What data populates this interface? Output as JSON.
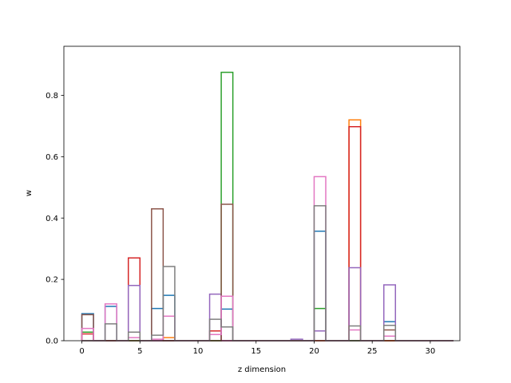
{
  "chart_data": {
    "type": "bar",
    "style": "step-outline histogram",
    "xlabel": "z dimension",
    "ylabel": "w",
    "xlim": [
      -1.55,
      32.55
    ],
    "ylim": [
      0,
      0.96
    ],
    "xticks": [
      0,
      5,
      10,
      15,
      20,
      25,
      30
    ],
    "yticks": [
      0.0,
      0.2,
      0.4,
      0.6,
      0.8
    ],
    "ytick_labels": [
      "0.0",
      "0.2",
      "0.4",
      "0.6",
      "0.8"
    ],
    "bins": [
      0,
      1,
      2,
      3,
      4,
      5,
      6,
      7,
      8,
      9,
      10,
      11,
      12,
      13,
      14,
      15,
      16,
      17,
      18,
      19,
      20,
      21,
      22,
      23,
      24,
      25,
      26,
      27,
      28,
      29,
      30,
      31
    ],
    "bar_width": 1,
    "grid": false,
    "legend": "none",
    "series": [
      {
        "color": "#1f77b4",
        "values": [
          0.088,
          0,
          0.112,
          0,
          0,
          0,
          0.105,
          0.148,
          0,
          0,
          0,
          0,
          0.103,
          0,
          0,
          0,
          0,
          0,
          0,
          0,
          0.357,
          0,
          0,
          0,
          0,
          0,
          0.062,
          0,
          0,
          0,
          0,
          0
        ]
      },
      {
        "color": "#ff7f0e",
        "values": [
          0,
          0,
          0,
          0,
          0,
          0,
          0,
          0.01,
          0,
          0,
          0,
          0,
          0,
          0,
          0,
          0,
          0,
          0,
          0,
          0,
          0,
          0,
          0,
          0.72,
          0,
          0,
          0,
          0,
          0,
          0,
          0,
          0
        ]
      },
      {
        "color": "#2ca02c",
        "values": [
          0.028,
          0,
          0,
          0,
          0,
          0,
          0,
          0,
          0,
          0,
          0,
          0,
          0.875,
          0,
          0,
          0,
          0,
          0,
          0,
          0,
          0.105,
          0,
          0,
          0,
          0,
          0,
          0,
          0,
          0,
          0,
          0,
          0
        ]
      },
      {
        "color": "#d62728",
        "values": [
          0.022,
          0,
          0,
          0,
          0.27,
          0,
          0,
          0,
          0,
          0,
          0,
          0.032,
          0,
          0,
          0,
          0,
          0,
          0,
          0,
          0,
          0,
          0,
          0,
          0.698,
          0,
          0,
          0,
          0,
          0,
          0,
          0,
          0
        ]
      },
      {
        "color": "#9467bd",
        "values": [
          0,
          0,
          0,
          0,
          0.18,
          0,
          0,
          0,
          0,
          0,
          0,
          0.152,
          0,
          0,
          0,
          0,
          0,
          0,
          0.005,
          0,
          0.032,
          0,
          0,
          0.238,
          0,
          0,
          0.182,
          0,
          0,
          0,
          0,
          0
        ]
      },
      {
        "color": "#8c564b",
        "values": [
          0.085,
          0,
          0,
          0,
          0,
          0,
          0.43,
          0,
          0,
          0,
          0,
          0,
          0.445,
          0,
          0,
          0,
          0,
          0,
          0,
          0,
          0,
          0,
          0,
          0,
          0,
          0,
          0.035,
          0,
          0,
          0,
          0,
          0
        ]
      },
      {
        "color": "#e377c2",
        "values": [
          0.04,
          0,
          0.12,
          0,
          0.01,
          0,
          0.005,
          0.08,
          0,
          0,
          0,
          0.02,
          0.145,
          0,
          0,
          0,
          0,
          0,
          0,
          0,
          0.535,
          0,
          0,
          0.035,
          0,
          0,
          0.015,
          0,
          0,
          0,
          0,
          0
        ]
      },
      {
        "color": "#7f7f7f",
        "values": [
          0,
          0,
          0.055,
          0,
          0.028,
          0,
          0.018,
          0.242,
          0,
          0,
          0,
          0.07,
          0.045,
          0,
          0,
          0,
          0,
          0,
          0,
          0,
          0.44,
          0,
          0,
          0.048,
          0,
          0,
          0.05,
          0,
          0,
          0,
          0,
          0
        ]
      }
    ]
  }
}
